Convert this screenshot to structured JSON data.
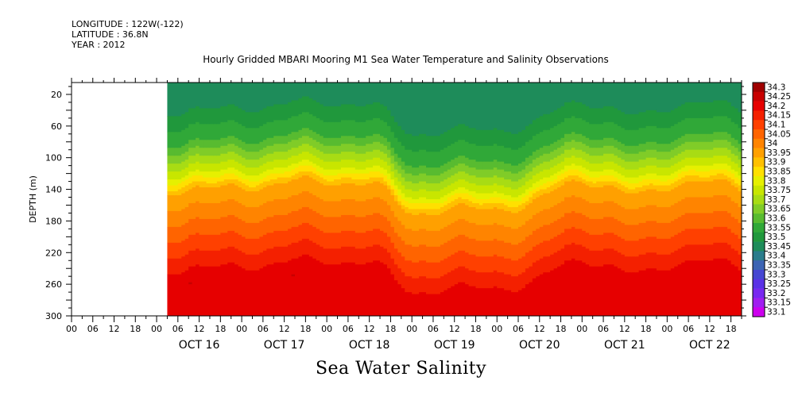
{
  "header": {
    "longitude": "LONGITUDE : 122W(-122)",
    "latitude": "LATITUDE : 36.8N",
    "year": "YEAR : 2012",
    "title": "Hourly Gridded MBARI Mooring M1 Sea Water Temperature and Salinity Observations"
  },
  "caption": "Sea Water Salinity",
  "chart_data": {
    "type": "heatmap",
    "title": "Hourly Gridded MBARI Mooring M1 Sea Water Temperature and Salinity Observations",
    "variable": "Sea Water Salinity",
    "ylabel": "DEPTH (m)",
    "ylim": [
      300,
      5
    ],
    "y_ticks": [
      20,
      60,
      100,
      140,
      180,
      220,
      260,
      300
    ],
    "x_start": "OCT 15 00:00",
    "x_end": "OCT 22 21:00",
    "data_start": "OCT 16 03:00",
    "hour_ticks": [
      "00",
      "06",
      "12",
      "18"
    ],
    "day_labels": [
      "OCT 16",
      "OCT 17",
      "OCT 18",
      "OCT 19",
      "OCT 20",
      "OCT 21",
      "OCT 22"
    ],
    "colorbar_levels": [
      "34.3",
      "34.25",
      "34.2",
      "34.15",
      "34.1",
      "34.05",
      "34",
      "33.95",
      "33.9",
      "33.85",
      "33.8",
      "33.75",
      "33.7",
      "33.65",
      "33.6",
      "33.55",
      "33.5",
      "33.45",
      "33.4",
      "33.35",
      "33.3",
      "33.25",
      "33.2",
      "33.15",
      "33.1"
    ],
    "colorbar_colors": [
      "#a00000",
      "#c80000",
      "#e60000",
      "#f42000",
      "#ff4000",
      "#ff6400",
      "#ff8400",
      "#ffa000",
      "#ffc000",
      "#ffe000",
      "#e6f000",
      "#c8e600",
      "#a8dc14",
      "#80cc28",
      "#58bb30",
      "#30a838",
      "#20983c",
      "#1e8c5a",
      "#2a7c8c",
      "#3c64b4",
      "#4646d2",
      "#5a32e6",
      "#7828f0",
      "#a01ef0",
      "#cd00ee"
    ],
    "depth_profile": [
      {
        "depth": 5,
        "salinity": 33.45
      },
      {
        "depth": 20,
        "salinity": 33.45
      },
      {
        "depth": 40,
        "salinity": 33.5
      },
      {
        "depth": 60,
        "salinity": 33.55
      },
      {
        "depth": 80,
        "salinity": 33.6
      },
      {
        "depth": 100,
        "salinity": 33.7
      },
      {
        "depth": 120,
        "salinity": 33.8
      },
      {
        "depth": 140,
        "salinity": 33.95
      },
      {
        "depth": 160,
        "salinity": 34.0
      },
      {
        "depth": 180,
        "salinity": 34.05
      },
      {
        "depth": 200,
        "salinity": 34.1
      },
      {
        "depth": 220,
        "salinity": 34.15
      },
      {
        "depth": 240,
        "salinity": 34.2
      },
      {
        "depth": 260,
        "salinity": 34.25
      },
      {
        "depth": 280,
        "salinity": 34.2
      },
      {
        "depth": 300,
        "salinity": 34.2
      }
    ],
    "upwelling_events": [
      {
        "time": "OCT 17 15:00",
        "width_hours": 8,
        "shift_m": 20
      },
      {
        "time": "OCT 18 15:00",
        "width_hours": 7,
        "shift_m": 25
      },
      {
        "time": "OCT 19 02:00",
        "width_hours": 10,
        "shift_m": -18
      },
      {
        "time": "OCT 19 21:00",
        "width_hours": 30,
        "shift_m": -22
      },
      {
        "time": "OCT 20 18:00",
        "width_hours": 8,
        "shift_m": 15
      },
      {
        "time": "OCT 21 09:00",
        "width_hours": 10,
        "shift_m": 10
      },
      {
        "time": "OCT 22 15:00",
        "width_hours": 8,
        "shift_m": 12
      }
    ]
  }
}
